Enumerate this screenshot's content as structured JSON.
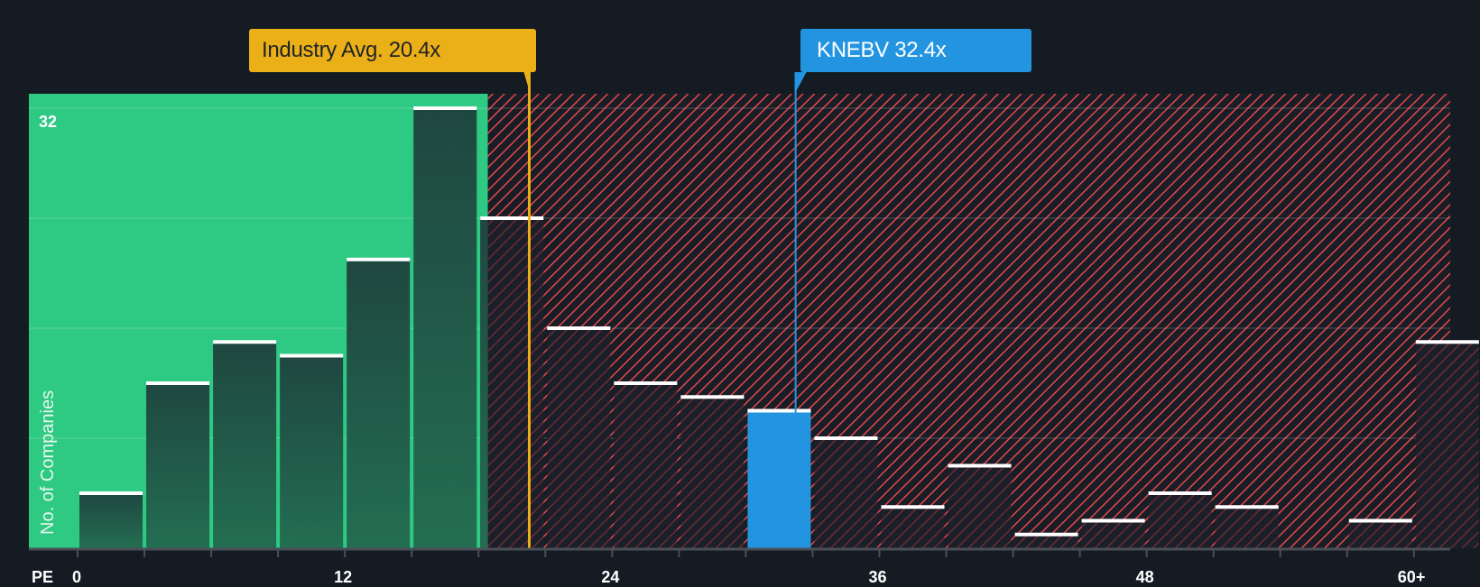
{
  "chart_data": {
    "type": "bar",
    "title": "",
    "xlabel": "PE",
    "ylabel": "No. of Companies",
    "bin_width": 3,
    "bins": [
      "0-3",
      "3-6",
      "6-9",
      "9-12",
      "12-15",
      "15-18",
      "18-21",
      "21-24",
      "24-27",
      "27-30",
      "30-33",
      "33-36",
      "36-39",
      "39-42",
      "42-45",
      "45-48",
      "48-51",
      "51-54",
      "54-57",
      "57-60",
      "60+"
    ],
    "values": [
      4,
      12,
      15,
      14,
      21,
      32,
      24,
      16,
      12,
      11,
      10,
      8,
      3,
      6,
      1,
      2,
      4,
      3,
      0,
      2,
      15
    ],
    "x_ticks": [
      "0",
      "12",
      "24",
      "36",
      "48",
      "60+"
    ],
    "y_ticks": [
      0,
      8,
      16,
      24,
      32
    ],
    "y_tick_labels_shown": [
      "32"
    ],
    "ylim": [
      0,
      32
    ],
    "grid": true,
    "highlight_bin_index": 10,
    "annotations": [
      {
        "label": "Industry Avg. 20.4x",
        "value": 20.4,
        "color": "#ebb017"
      },
      {
        "label": "KNEBV 32.4x",
        "value": 32.4,
        "color": "#2394e0"
      }
    ],
    "regions": [
      {
        "name": "below-industry-avg",
        "from": 0,
        "to": 18.4,
        "color": "#2ec983"
      },
      {
        "name": "above-industry-avg",
        "from": 18.4,
        "to": 63,
        "color": "#e5484d",
        "pattern": "diagonal-hatch"
      }
    ]
  },
  "labels": {
    "industry_callout": "Industry Avg. 20.4x",
    "company_callout": "KNEBV 32.4x",
    "y_top_tick": "32",
    "y_axis_title": "No. of Companies",
    "x_axis_title": "PE",
    "x_ticks": [
      "0",
      "12",
      "24",
      "36",
      "48",
      "60+"
    ]
  },
  "colors": {
    "background": "#151b23",
    "green_region": "#2ec983",
    "hatch": "#e5484d",
    "industry": "#ebb017",
    "company": "#2394e0"
  }
}
